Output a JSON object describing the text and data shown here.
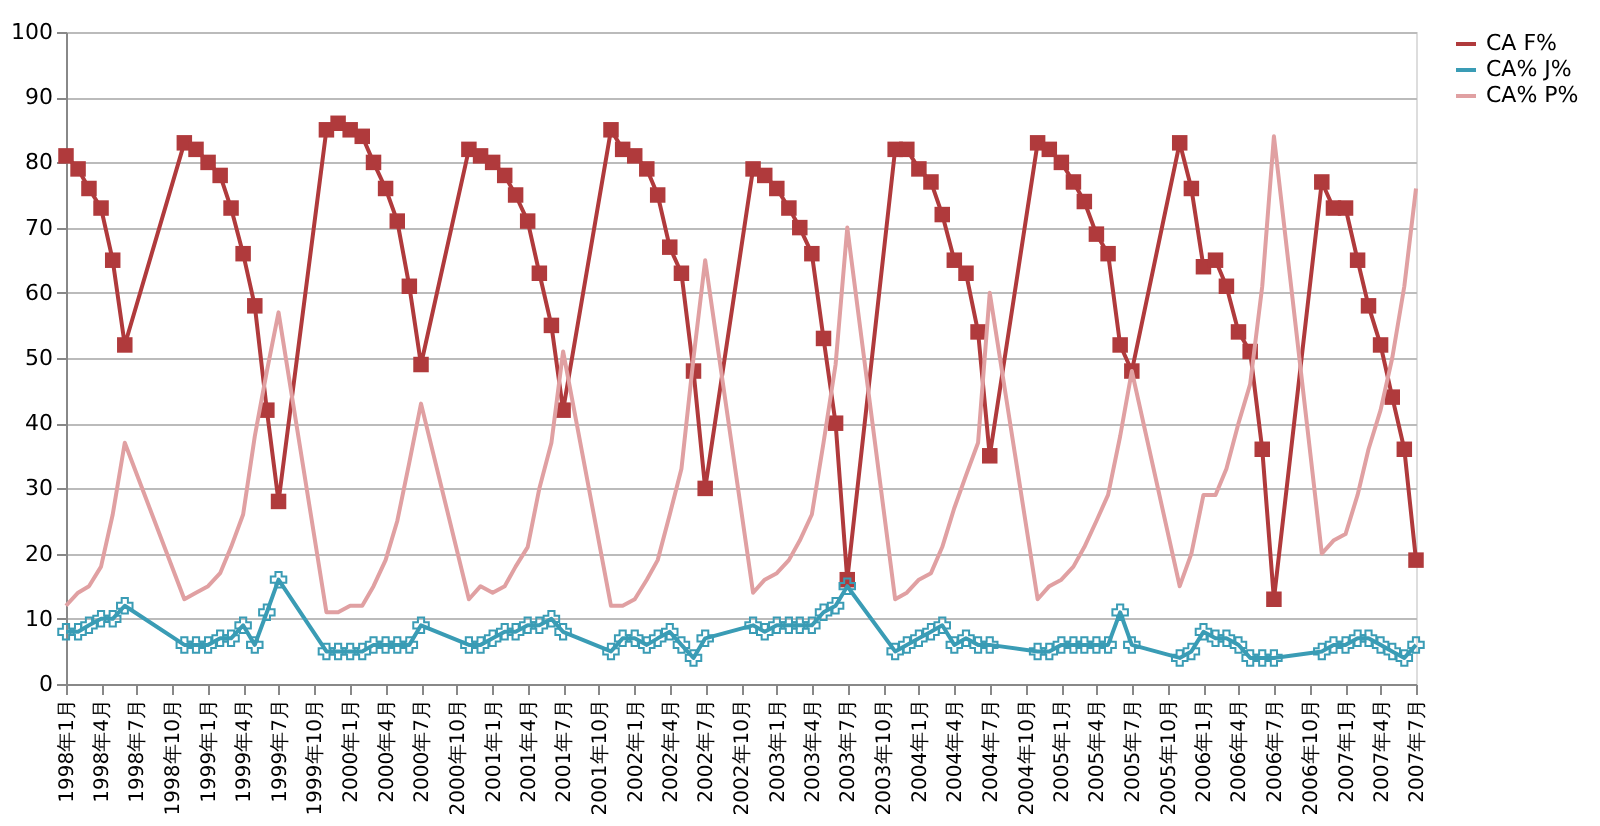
{
  "chart_data": {
    "type": "line",
    "x": [
      "1998-01",
      "1998-02",
      "1998-03",
      "1998-04",
      "1998-05",
      "1998-06",
      "1998-11",
      "1998-12",
      "1999-01",
      "1999-02",
      "1999-03",
      "1999-04",
      "1999-05",
      "1999-06",
      "1999-07",
      "1999-11",
      "1999-12",
      "2000-01",
      "2000-02",
      "2000-03",
      "2000-04",
      "2000-05",
      "2000-06",
      "2000-07",
      "2000-11",
      "2000-12",
      "2001-01",
      "2001-02",
      "2001-03",
      "2001-04",
      "2001-05",
      "2001-06",
      "2001-07",
      "2001-11",
      "2001-12",
      "2002-01",
      "2002-02",
      "2002-03",
      "2002-04",
      "2002-05",
      "2002-06",
      "2002-07",
      "2002-11",
      "2002-12",
      "2003-01",
      "2003-02",
      "2003-03",
      "2003-04",
      "2003-05",
      "2003-06",
      "2003-07",
      "2003-11",
      "2003-12",
      "2004-01",
      "2004-02",
      "2004-03",
      "2004-04",
      "2004-05",
      "2004-06",
      "2004-07",
      "2004-11",
      "2004-12",
      "2005-01",
      "2005-02",
      "2005-03",
      "2005-04",
      "2005-05",
      "2005-06",
      "2005-07",
      "2005-11",
      "2005-12",
      "2006-01",
      "2006-02",
      "2006-03",
      "2006-04",
      "2006-05",
      "2006-06",
      "2006-07",
      "2006-11",
      "2006-12",
      "2007-01",
      "2007-02",
      "2007-03",
      "2007-04",
      "2007-05",
      "2007-06",
      "2007-07"
    ],
    "series": [
      {
        "name": "CA F%",
        "color": "#b03a3c",
        "marker": "square",
        "values": [
          81,
          79,
          76,
          73,
          65,
          52,
          83,
          82,
          80,
          78,
          73,
          66,
          58,
          42,
          28,
          85,
          86,
          85,
          84,
          80,
          76,
          71,
          61,
          49,
          82,
          81,
          80,
          78,
          75,
          71,
          63,
          55,
          42,
          85,
          82,
          81,
          79,
          75,
          67,
          63,
          48,
          30,
          79,
          78,
          76,
          73,
          70,
          66,
          53,
          40,
          16,
          82,
          82,
          79,
          77,
          72,
          65,
          63,
          54,
          35,
          83,
          82,
          80,
          77,
          74,
          69,
          66,
          52,
          48,
          83,
          76,
          64,
          65,
          61,
          54,
          51,
          36,
          13,
          77,
          73,
          73,
          65,
          58,
          52,
          44,
          36,
          19
        ]
      },
      {
        "name": "CA% J%",
        "color": "#3a9cb5",
        "marker": "cross",
        "values": [
          8,
          8,
          9,
          10,
          10,
          12,
          6,
          6,
          6,
          7,
          7,
          9,
          6,
          11,
          16,
          5,
          5,
          5,
          5,
          6,
          6,
          6,
          6,
          9,
          6,
          6,
          7,
          8,
          8,
          9,
          9,
          10,
          8,
          5,
          7,
          7,
          6,
          7,
          8,
          6,
          4,
          7,
          9,
          8,
          9,
          9,
          9,
          9,
          11,
          12,
          15,
          5,
          6,
          7,
          8,
          9,
          6,
          7,
          6,
          6,
          5,
          5,
          6,
          6,
          6,
          6,
          6,
          11,
          6,
          4,
          5,
          8,
          7,
          7,
          6,
          4,
          4,
          4,
          5,
          6,
          6,
          7,
          7,
          6,
          5,
          4,
          6
        ]
      },
      {
        "name": "CA% P%",
        "color": "#e0a0a2",
        "marker": "none",
        "values": [
          12,
          14,
          15,
          18,
          26,
          37,
          13,
          14,
          15,
          17,
          21,
          26,
          38,
          48,
          57,
          11,
          11,
          12,
          12,
          15,
          19,
          25,
          34,
          43,
          13,
          15,
          14,
          15,
          18,
          21,
          30,
          37,
          51,
          12,
          12,
          13,
          16,
          19,
          26,
          33,
          50,
          65,
          14,
          16,
          17,
          19,
          22,
          26,
          37,
          49,
          70,
          13,
          14,
          16,
          17,
          21,
          27,
          32,
          37,
          60,
          13,
          15,
          16,
          18,
          21,
          25,
          29,
          38,
          48,
          15,
          20,
          29,
          29,
          33,
          40,
          46,
          61,
          84,
          20,
          22,
          23,
          29,
          36,
          42,
          50,
          61,
          76
        ]
      }
    ],
    "xlim": [
      "1998-01",
      "2007-07"
    ],
    "xticks": [
      {
        "value": "1998-01",
        "label": "1998年1月"
      },
      {
        "value": "1998-04",
        "label": "1998年4月"
      },
      {
        "value": "1998-07",
        "label": "1998年7月"
      },
      {
        "value": "1998-10",
        "label": "1998年10月"
      },
      {
        "value": "1999-01",
        "label": "1999年1月"
      },
      {
        "value": "1999-04",
        "label": "1999年4月"
      },
      {
        "value": "1999-07",
        "label": "1999年7月"
      },
      {
        "value": "1999-10",
        "label": "1999年10月"
      },
      {
        "value": "2000-01",
        "label": "2000年1月"
      },
      {
        "value": "2000-04",
        "label": "2000年4月"
      },
      {
        "value": "2000-07",
        "label": "2000年7月"
      },
      {
        "value": "2000-10",
        "label": "2000年10月"
      },
      {
        "value": "2001-01",
        "label": "2001年1月"
      },
      {
        "value": "2001-04",
        "label": "2001年4月"
      },
      {
        "value": "2001-07",
        "label": "2001年7月"
      },
      {
        "value": "2001-10",
        "label": "2001年10月"
      },
      {
        "value": "2002-01",
        "label": "2002年1月"
      },
      {
        "value": "2002-04",
        "label": "2002年4月"
      },
      {
        "value": "2002-07",
        "label": "2002年7月"
      },
      {
        "value": "2002-10",
        "label": "2002年10月"
      },
      {
        "value": "2003-01",
        "label": "2003年1月"
      },
      {
        "value": "2003-04",
        "label": "2003年4月"
      },
      {
        "value": "2003-07",
        "label": "2003年7月"
      },
      {
        "value": "2003-10",
        "label": "2003年10月"
      },
      {
        "value": "2004-01",
        "label": "2004年1月"
      },
      {
        "value": "2004-04",
        "label": "2004年4月"
      },
      {
        "value": "2004-07",
        "label": "2004年7月"
      },
      {
        "value": "2004-10",
        "label": "2004年10月"
      },
      {
        "value": "2005-01",
        "label": "2005年1月"
      },
      {
        "value": "2005-04",
        "label": "2005年4月"
      },
      {
        "value": "2005-07",
        "label": "2005年7月"
      },
      {
        "value": "2005-10",
        "label": "2005年10月"
      },
      {
        "value": "2006-01",
        "label": "2006年1月"
      },
      {
        "value": "2006-04",
        "label": "2006年4月"
      },
      {
        "value": "2006-07",
        "label": "2006年7月"
      },
      {
        "value": "2006-10",
        "label": "2006年10月"
      },
      {
        "value": "2007-01",
        "label": "2007年1月"
      },
      {
        "value": "2007-04",
        "label": "2007年4月"
      },
      {
        "value": "2007-07",
        "label": "2007年7月"
      }
    ],
    "ylim": [
      0,
      100
    ],
    "yticks": [
      0,
      10,
      20,
      30,
      40,
      50,
      60,
      70,
      80,
      90,
      100
    ],
    "grid": "y",
    "legend": "right",
    "line_style": "solid"
  }
}
